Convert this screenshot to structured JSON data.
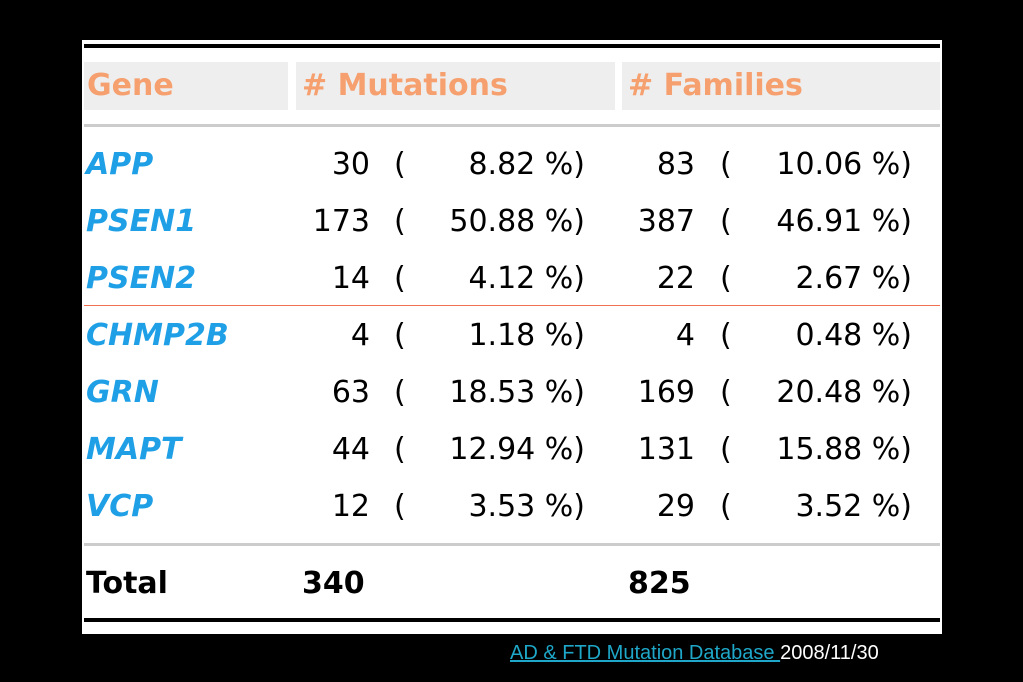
{
  "table": {
    "header": [
      "Gene",
      "# Mutations",
      "# Families"
    ],
    "rows": [
      [
        "APP",
        "30",
        "(",
        "8.82 %)",
        "83",
        "(",
        "10.06 %)"
      ],
      [
        "PSEN1",
        "173",
        "(",
        "50.88 %)",
        "387",
        "(",
        "46.91 %)"
      ],
      [
        "PSEN2",
        "14",
        "(",
        "4.12 %)",
        "22",
        "(",
        "2.67 %)"
      ],
      [
        "CHMP2B",
        "4",
        "(",
        "1.18 %)",
        "4",
        "(",
        "0.48 %)"
      ],
      [
        "GRN",
        "63",
        "(",
        "18.53 %)",
        "169",
        "(",
        "20.48 %)"
      ],
      [
        "MAPT",
        "44",
        "(",
        "12.94 %)",
        "131",
        "(",
        "15.88 %)"
      ],
      [
        "VCP",
        "12",
        "(",
        "3.53 %)",
        "29",
        "(",
        "3.52 %)"
      ]
    ],
    "total": [
      "Total",
      "340",
      "825"
    ]
  },
  "footer": {
    "link": "AD & FTD Mutation Database ",
    "date": "2008/11/30"
  }
}
